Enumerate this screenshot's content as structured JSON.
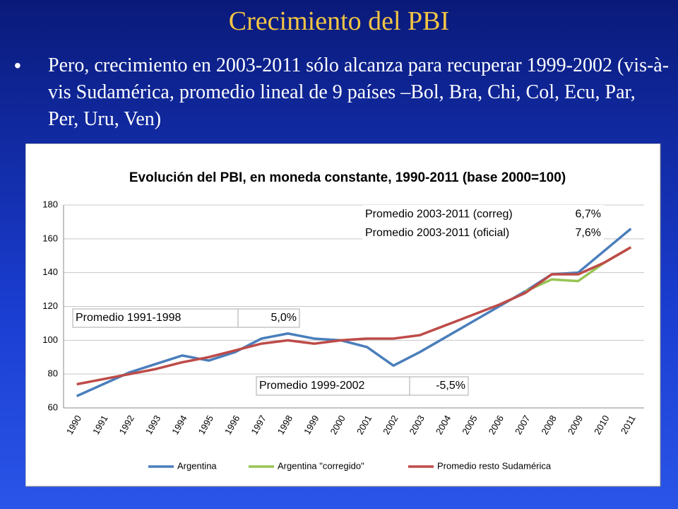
{
  "slide": {
    "title": "Crecimiento del PBI",
    "bullet": "Pero, crecimiento en 2003-2011 sólo alcanza para recuperar 1999-2002 (vis-à-vis Sudamérica, promedio lineal de 9 países –Bol, Bra, Chi, Col, Ecu, Par, Per, Uru, Ven)"
  },
  "chart_data": {
    "type": "line",
    "title": "Evolución del PBI, en moneda constante, 1990-2011 (base 2000=100)",
    "categories": [
      "1990",
      "1991",
      "1992",
      "1993",
      "1994",
      "1995",
      "1996",
      "1997",
      "1998",
      "1999",
      "2000",
      "2001",
      "2002",
      "2003",
      "2004",
      "2005",
      "2006",
      "2007",
      "2008",
      "2009",
      "2010",
      "2011"
    ],
    "series": [
      {
        "name": "Argentina",
        "color": "#4a7ebb",
        "values": [
          67,
          74,
          81,
          86,
          91,
          88,
          93,
          101,
          104,
          101,
          100,
          96,
          85,
          93,
          102,
          111,
          120,
          129,
          139,
          140,
          153,
          166
        ]
      },
      {
        "name": "Argentina \"corregido\"",
        "color": "#98c454",
        "values": [
          null,
          null,
          null,
          null,
          null,
          null,
          null,
          null,
          null,
          null,
          null,
          null,
          null,
          null,
          null,
          null,
          null,
          129,
          136,
          135,
          146,
          155
        ]
      },
      {
        "name": "Promedio resto Sudamérica",
        "color": "#be4b48",
        "values": [
          74,
          77,
          80,
          83,
          87,
          90,
          94,
          98,
          100,
          98,
          100,
          101,
          101,
          103,
          109,
          115,
          121,
          128,
          139,
          139,
          146,
          155
        ]
      }
    ],
    "ylim": [
      60,
      180
    ],
    "yticks": [
      60,
      80,
      100,
      120,
      140,
      160,
      180
    ],
    "grid": true,
    "legend": "bottom",
    "annotations": [
      {
        "label": "Promedio 2003-2011 (correg)",
        "value": "6,7%"
      },
      {
        "label": "Promedio 2003-2011 (oficial)",
        "value": "7,6%"
      },
      {
        "label": "Promedio 1991-1998",
        "value": "5,0%"
      },
      {
        "label": "Promedio 1999-2002",
        "value": "-5,5%"
      }
    ]
  }
}
